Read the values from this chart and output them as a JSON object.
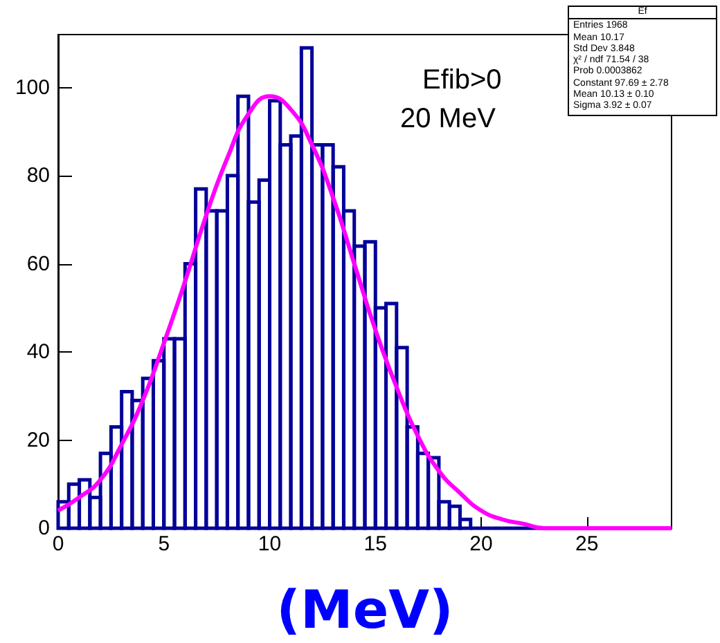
{
  "chart_data": {
    "type": "histogram",
    "xlabel": "(MeV)",
    "color": "#000099",
    "bins": [
      0,
      0.5,
      1,
      1.5,
      2,
      2.5,
      3,
      3.5,
      4,
      4.5,
      5,
      5.5,
      6,
      6.5,
      7,
      7.5,
      8,
      8.5,
      9,
      9.5,
      10,
      10.5,
      11,
      11.5,
      12,
      12.5,
      13,
      13.5,
      14,
      14.5,
      15,
      15.5,
      16,
      16.5,
      17,
      17.5,
      18,
      18.5,
      19,
      19.5,
      20,
      20.5,
      21,
      21.5,
      22,
      22.5,
      23,
      23.5,
      24,
      24.5,
      25,
      25.5,
      26,
      26.5,
      27,
      27.5,
      28,
      28.5,
      29
    ],
    "values": [
      6,
      10,
      11,
      7,
      17,
      23,
      31,
      29,
      34,
      38,
      43,
      43,
      60,
      77,
      72,
      72,
      80,
      98,
      74,
      79,
      97,
      87,
      89,
      109,
      87,
      87,
      82,
      72,
      64,
      65,
      50,
      51,
      41,
      23,
      17,
      16,
      6,
      5,
      2,
      0,
      0,
      0,
      0,
      0,
      0,
      0,
      0,
      0,
      0,
      0,
      0,
      0,
      0,
      0,
      0,
      0,
      0,
      0
    ],
    "series": [
      {
        "type": "line",
        "color": "#ff00ff",
        "x": [
          0,
          1,
          2,
          3,
          4,
          5,
          6,
          7,
          8,
          9,
          10,
          11,
          12,
          13,
          14,
          15,
          16,
          17,
          18,
          19,
          20,
          21,
          22,
          23,
          24,
          25,
          26,
          27,
          28,
          29
        ],
        "values": [
          4,
          7,
          11,
          19,
          29,
          42,
          56,
          71,
          84,
          94,
          98,
          95,
          87,
          75,
          60,
          45,
          32,
          21,
          13,
          8,
          4,
          2,
          1,
          0,
          0,
          0,
          0,
          0,
          0,
          0
        ]
      }
    ],
    "xlim": [
      0,
      29
    ],
    "xticks": [
      0,
      5,
      10,
      15,
      20,
      25
    ],
    "ylim": [
      0,
      112
    ],
    "yticks": [
      0,
      20,
      40,
      60,
      80,
      100
    ],
    "annotations": [
      "Efib>0",
      "20 MeV",
      "Ef",
      "Entries 1968",
      "Mean 10.17",
      "Std Dev 3.848",
      "χ² / ndf 71.54 / 38",
      "Prob 0.0003862",
      "Constant 97.69 ± 2.78",
      "Mean 10.13 ± 0.10",
      "Sigma 3.92 ± 0.07"
    ]
  }
}
